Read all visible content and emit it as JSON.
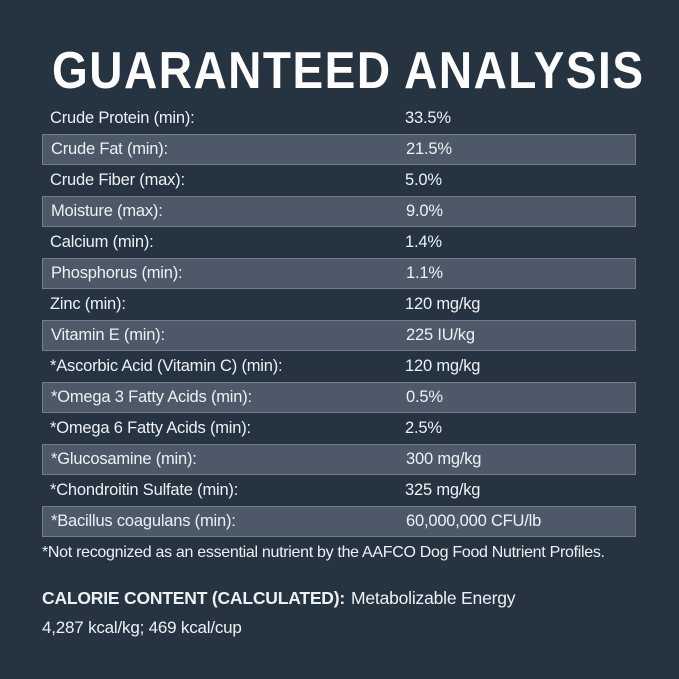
{
  "colors": {
    "background": "#263341",
    "stripe": "#4d5968",
    "stripe_border": "#6a7584",
    "text": "#eef1f3"
  },
  "title": "GUARANTEED ANALYSIS",
  "table": {
    "rows": [
      {
        "label": "Crude Protein (min):",
        "value": "33.5%"
      },
      {
        "label": "Crude Fat (min):",
        "value": "21.5%"
      },
      {
        "label": "Crude Fiber (max):",
        "value": "5.0%"
      },
      {
        "label": "Moisture (max):",
        "value": "9.0%"
      },
      {
        "label": "Calcium (min):",
        "value": "1.4%"
      },
      {
        "label": "Phosphorus (min):",
        "value": "1.1%"
      },
      {
        "label": "Zinc (min):",
        "value": "120 mg/kg"
      },
      {
        "label": "Vitamin E (min):",
        "value": "225 IU/kg"
      },
      {
        "label": "*Ascorbic Acid (Vitamin C) (min):",
        "value": "120 mg/kg"
      },
      {
        "label": "*Omega 3 Fatty Acids (min):",
        "value": "0.5%"
      },
      {
        "label": "*Omega 6 Fatty Acids (min):",
        "value": "2.5%"
      },
      {
        "label": "*Glucosamine (min):",
        "value": "300 mg/kg"
      },
      {
        "label": "*Chondroitin Sulfate (min):",
        "value": "325 mg/kg"
      },
      {
        "label": "*Bacillus coagulans (min):",
        "value": "60,000,000 CFU/lb"
      }
    ]
  },
  "footnote": "*Not recognized as an essential nutrient by the AAFCO Dog Food Nutrient Profiles.",
  "calorie": {
    "heading": "CALORIE CONTENT (CALCULATED):",
    "heading_suffix": "Metabolizable Energy",
    "values": "4,287 kcal/kg; 469 kcal/cup"
  }
}
